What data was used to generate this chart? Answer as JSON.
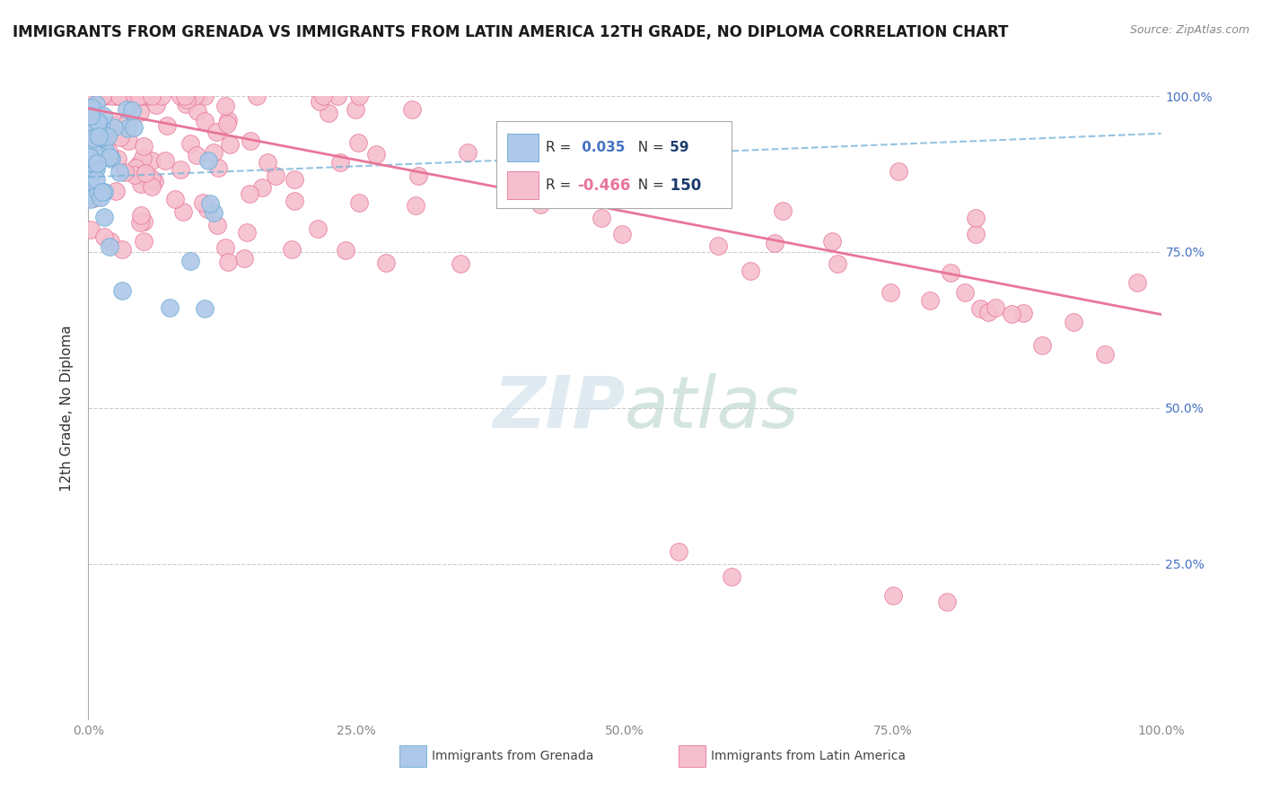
{
  "title": "IMMIGRANTS FROM GRENADA VS IMMIGRANTS FROM LATIN AMERICA 12TH GRADE, NO DIPLOMA CORRELATION CHART",
  "source": "Source: ZipAtlas.com",
  "ylabel": "12th Grade, No Diploma",
  "xlim": [
    0,
    1.0
  ],
  "ylim": [
    0,
    1.0
  ],
  "xticks": [
    0.0,
    0.25,
    0.5,
    0.75,
    1.0
  ],
  "yticks": [
    0.0,
    0.25,
    0.5,
    0.75,
    1.0
  ],
  "xtick_labels": [
    "0.0%",
    "25.0%",
    "50.0%",
    "75.0%",
    "100.0%"
  ],
  "right_ytick_labels": [
    "",
    "25.0%",
    "50.0%",
    "75.0%",
    "100.0%"
  ],
  "grenada_color": "#adc8e8",
  "grenada_edge": "#6aaad4",
  "latin_color": "#f5bfce",
  "latin_edge": "#e8759a",
  "grenada_R": 0.035,
  "grenada_N": 59,
  "latin_R": -0.466,
  "latin_N": 150,
  "trend_grenada_color": "#7ab4d8",
  "trend_latin_color": "#e8759a",
  "legend_box_color": "#ffffff",
  "legend_border_color": "#cccccc",
  "watermark_zip": "ZIP",
  "watermark_atlas": "atlas",
  "watermark_color_zip": "#d0dce8",
  "watermark_color_atlas": "#c8dcd0",
  "background_color": "#ffffff",
  "grid_color": "#cccccc",
  "title_fontsize": 12,
  "axis_label_fontsize": 11,
  "tick_fontsize": 10,
  "right_tick_color": "#4472c4",
  "bottom_tick_color": "#888888"
}
